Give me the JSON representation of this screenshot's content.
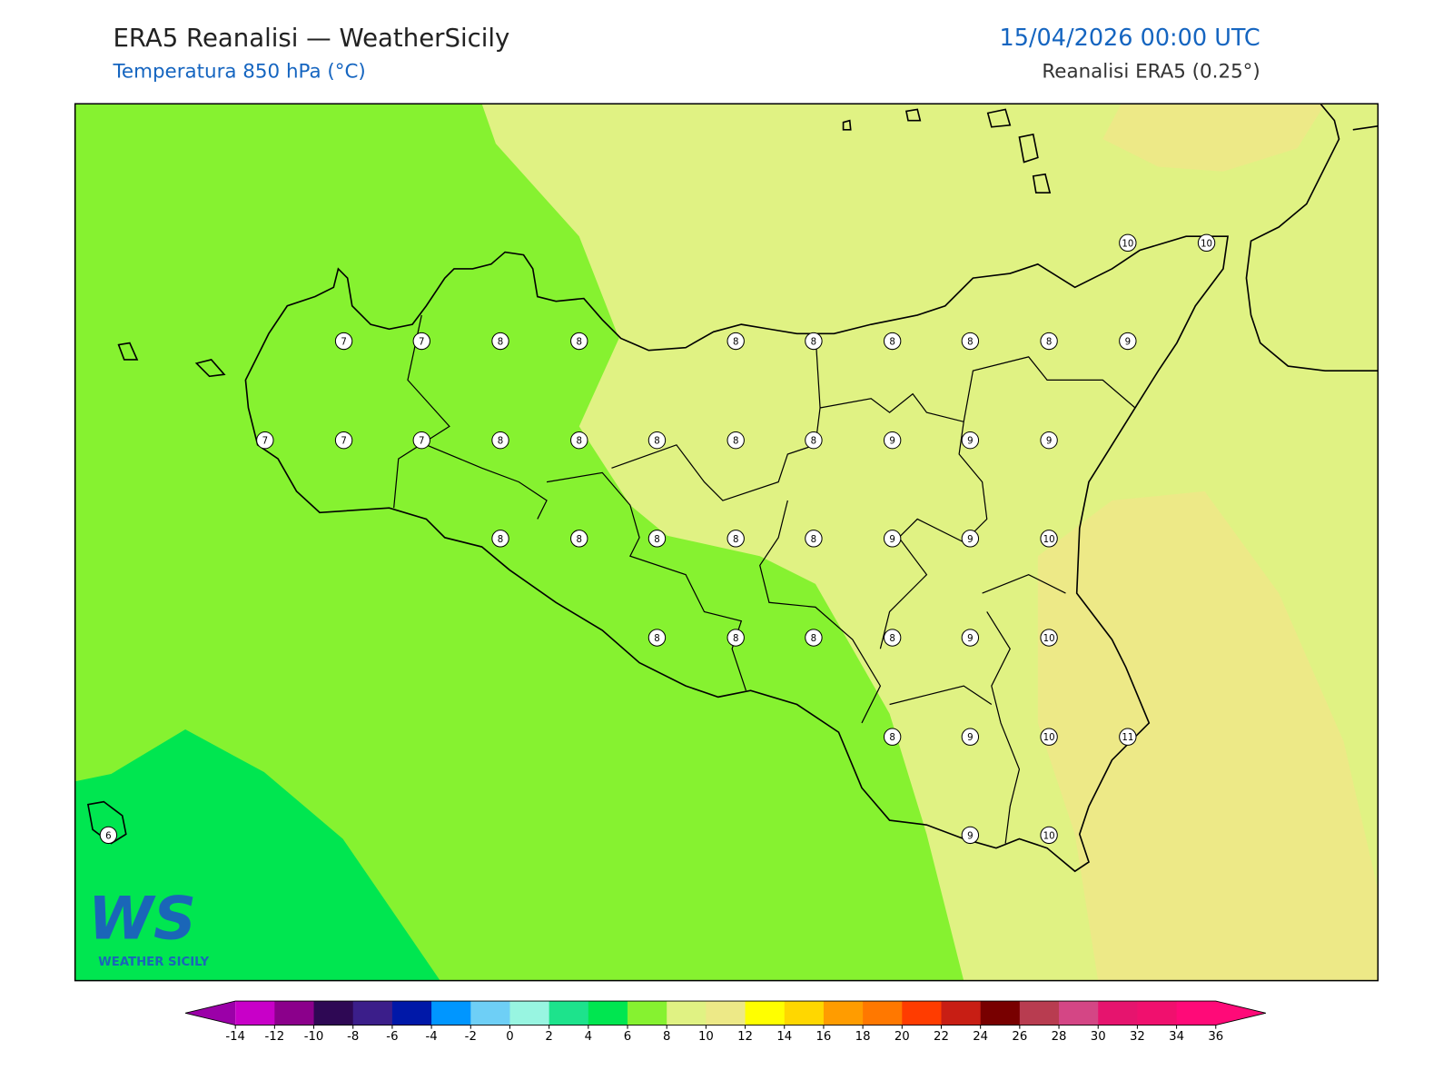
{
  "header": {
    "title": "ERA5 Reanalisi — WeatherSicily",
    "subtitle": "Temperatura 850 hPa (°C)",
    "datetime": "15/04/2026 00:00 UTC",
    "source": "Reanalisi ERA5 (0.25°)"
  },
  "map": {
    "station_values": [
      10,
      10,
      7,
      7,
      8,
      8,
      8,
      8,
      8,
      8,
      8,
      9,
      7,
      7,
      7,
      8,
      8,
      8,
      8,
      8,
      9,
      9,
      9,
      8,
      8,
      8,
      8,
      8,
      9,
      9,
      10,
      8,
      8,
      8,
      8,
      9,
      10,
      8,
      9,
      10,
      11,
      6,
      9,
      10
    ]
  },
  "colorbar": {
    "ticks": [
      -14,
      -12,
      -10,
      -8,
      -6,
      -4,
      -2,
      0,
      2,
      4,
      6,
      8,
      10,
      12,
      14,
      16,
      18,
      20,
      22,
      24,
      26,
      28,
      30,
      32,
      34,
      36
    ],
    "colors": [
      "#c800c8",
      "#8b008b",
      "#2e0854",
      "#3b1e8a",
      "#0018a8",
      "#0096ff",
      "#6ecff6",
      "#98f5e1",
      "#1de38c",
      "#00e650",
      "#86f230",
      "#e0f283",
      "#ede987",
      "#ffff00",
      "#ffd700",
      "#ff9c00",
      "#ff7800",
      "#ff3c00",
      "#c81e14",
      "#780000",
      "#b83c50",
      "#d44685",
      "#e6146e",
      "#f0106e",
      "#ff0a78"
    ],
    "under_color": "#9b00a8",
    "over_color": "#ff0a78"
  },
  "logo": {
    "mark": "WS",
    "name": "WEATHER SICILY"
  }
}
